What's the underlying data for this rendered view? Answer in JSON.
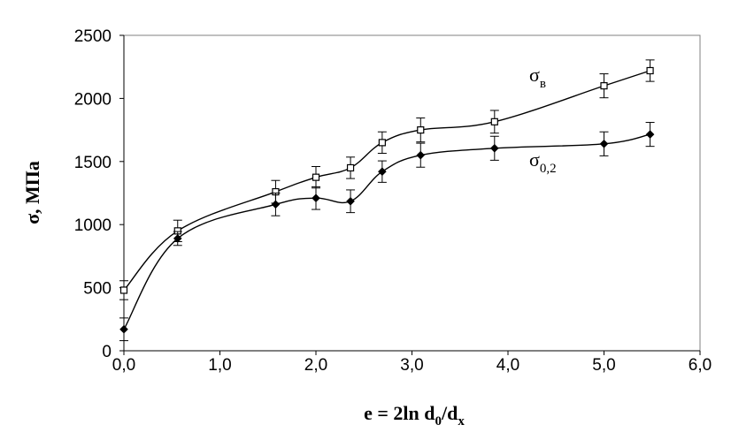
{
  "chart_data": {
    "type": "line",
    "xlabel": {
      "main": "e = 2ln d",
      "sub1": "0",
      "mid": "/d",
      "sub2": "x"
    },
    "ylabel": "σ, МПа",
    "xlim": [
      0,
      6
    ],
    "ylim": [
      0,
      2500
    ],
    "x_ticks": [
      "0,0",
      "1,0",
      "2,0",
      "3,0",
      "4,0",
      "5,0",
      "6,0"
    ],
    "y_ticks": [
      "0",
      "500",
      "1000",
      "1500",
      "2000",
      "2500"
    ],
    "grid": false,
    "legend": "none",
    "series": [
      {
        "name": "σ_в",
        "label_main": "σ",
        "label_sub": "в",
        "marker": "open-square",
        "x": [
          0.0,
          0.56,
          1.58,
          2.0,
          2.36,
          2.69,
          3.09,
          3.86,
          5.0,
          5.48
        ],
        "y": [
          480,
          950,
          1260,
          1375,
          1450,
          1650,
          1750,
          1815,
          2100,
          2220
        ],
        "err": [
          75,
          85,
          90,
          85,
          85,
          85,
          95,
          90,
          95,
          85
        ]
      },
      {
        "name": "σ_0,2",
        "label_main": "σ",
        "label_sub": "0,2",
        "marker": "filled-diamond",
        "x": [
          0.0,
          0.56,
          1.58,
          2.0,
          2.36,
          2.69,
          3.09,
          3.86,
          5.0,
          5.48
        ],
        "y": [
          170,
          890,
          1160,
          1210,
          1185,
          1420,
          1550,
          1605,
          1640,
          1715
        ],
        "err": [
          90,
          55,
          90,
          90,
          90,
          85,
          95,
          95,
          95,
          95
        ]
      }
    ],
    "colors": {
      "line": "#000000",
      "axis": "#000000",
      "frame": "#808080"
    }
  }
}
